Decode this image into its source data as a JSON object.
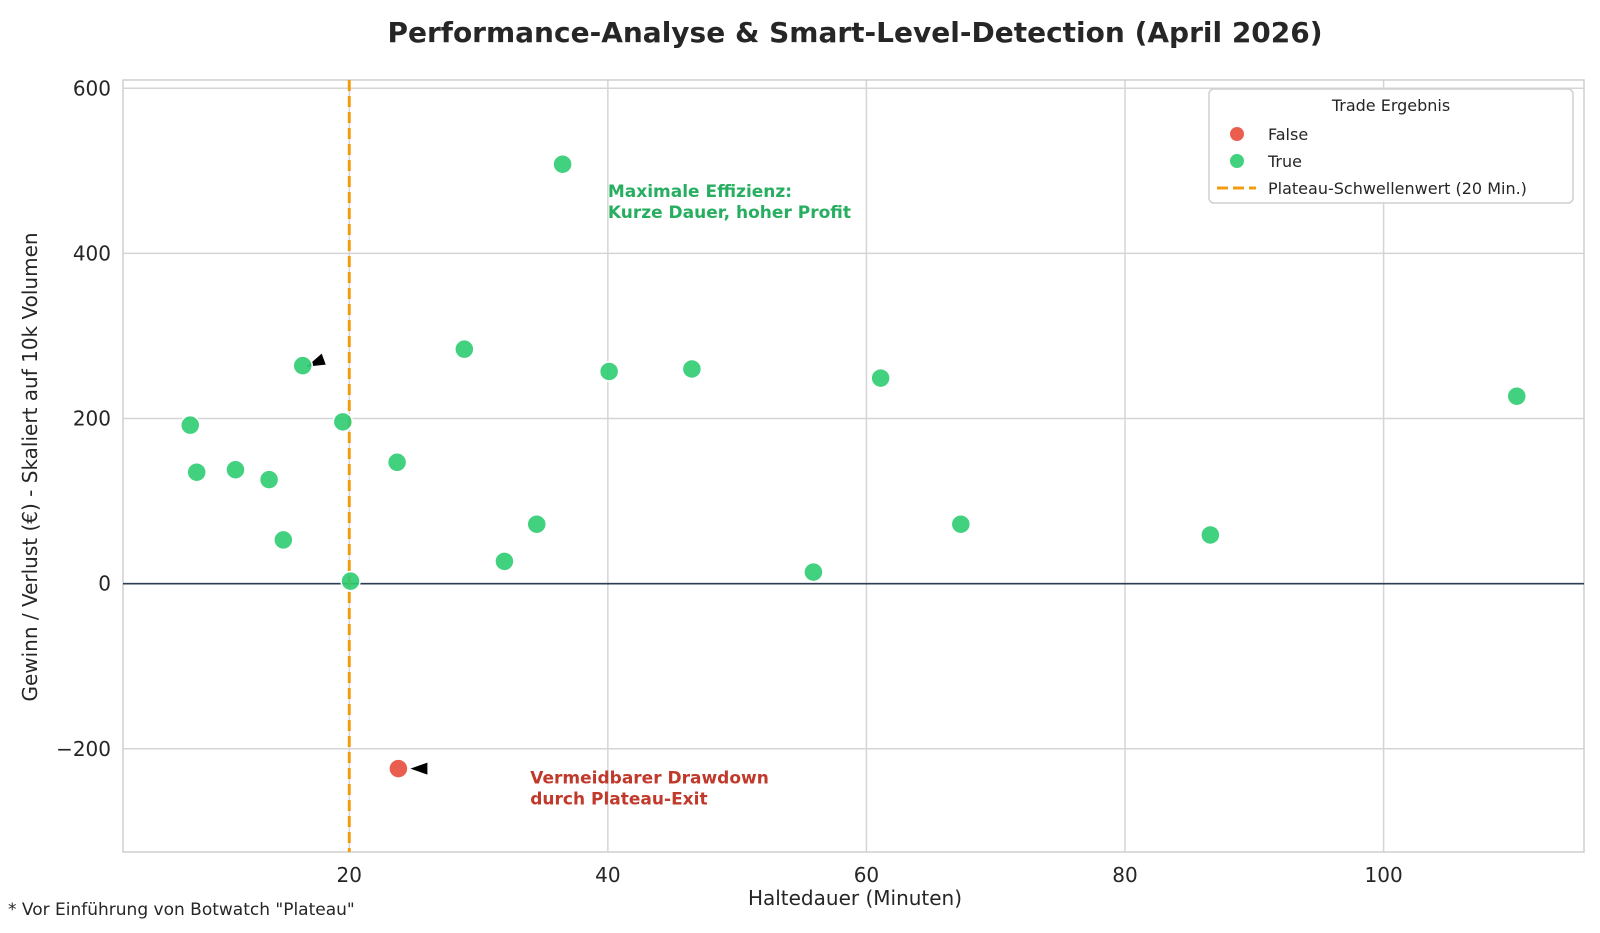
{
  "chart_data": {
    "type": "scatter",
    "title": "Performance-Analyse & Smart-Level-Detection (April 2026)",
    "xlabel": "Haltedauer (Minuten)",
    "ylabel": "Gewinn / Verlust (€) - Skaliert auf 10k Volumen",
    "xlim": [
      2.5,
      115.5
    ],
    "ylim": [
      -325,
      610
    ],
    "xticks": [
      20,
      40,
      60,
      80,
      100
    ],
    "yticks": [
      -200,
      0,
      200,
      400,
      600
    ],
    "xtick_labels": [
      "20",
      "40",
      "60",
      "80",
      "100"
    ],
    "ytick_labels": [
      "−200",
      "0",
      "200",
      "400",
      "600"
    ],
    "grid": true,
    "legend_title": "Trade Ergebnis",
    "legend_position": "top-right",
    "series": [
      {
        "name": "False",
        "color": "#e74c3c",
        "points": [
          {
            "x": 23.8,
            "y": -224
          }
        ]
      },
      {
        "name": "True",
        "color": "#2ecc71",
        "points": [
          {
            "x": 7.7,
            "y": 192
          },
          {
            "x": 8.2,
            "y": 135
          },
          {
            "x": 11.2,
            "y": 138
          },
          {
            "x": 13.8,
            "y": 126
          },
          {
            "x": 14.9,
            "y": 53
          },
          {
            "x": 16.4,
            "y": 264
          },
          {
            "x": 19.5,
            "y": 196
          },
          {
            "x": 20.1,
            "y": 3
          },
          {
            "x": 23.7,
            "y": 147
          },
          {
            "x": 28.9,
            "y": 284
          },
          {
            "x": 32,
            "y": 27
          },
          {
            "x": 34.5,
            "y": 72
          },
          {
            "x": 36.5,
            "y": 508
          },
          {
            "x": 40.1,
            "y": 257
          },
          {
            "x": 46.5,
            "y": 260
          },
          {
            "x": 55.9,
            "y": 14
          },
          {
            "x": 61.1,
            "y": 249
          },
          {
            "x": 67.3,
            "y": 72
          },
          {
            "x": 86.6,
            "y": 59
          },
          {
            "x": 110.3,
            "y": 227
          }
        ]
      }
    ],
    "threshold": {
      "x": 20,
      "label": "Plateau-Schwellenwert (20 Min.)",
      "color": "#f39c12",
      "style": "dashed"
    },
    "zero_line": {
      "y": 0,
      "color": "#2c3e50"
    },
    "annotations": [
      {
        "lines": [
          "Maximale Effizienz:",
          "Kurze Dauer, hoher Profit"
        ],
        "color": "#27ae60",
        "text_x": 40,
        "text_y": 468,
        "arrow_to": {
          "x": 16.4,
          "y": 264
        }
      },
      {
        "lines": [
          "Vermeidbarer Drawdown",
          "durch Plateau-Exit"
        ],
        "color": "#c0392b",
        "text_x": 34,
        "text_y": -242,
        "arrow_to": {
          "x": 23.8,
          "y": -224
        }
      }
    ]
  },
  "footnote": "* Vor Einführung von Botwatch \"Plateau\""
}
